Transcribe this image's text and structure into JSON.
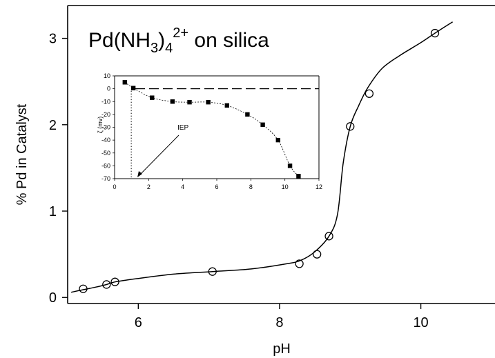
{
  "chart_data": [
    {
      "type": "scatter",
      "title_parts": {
        "base": "Pd(NH",
        "sub1": "3",
        "mid": ")",
        "sub2": "4",
        "sup": "2+",
        "rest": " on silica"
      },
      "xlabel": "pH",
      "ylabel": "% Pd in Catalyst",
      "xlim": [
        5.0,
        11.05
      ],
      "ylim": [
        -0.07,
        3.38
      ],
      "xticks": [
        "6",
        "8",
        "10"
      ],
      "yticks": [
        "0",
        "1",
        "2",
        "3"
      ],
      "grid": false,
      "series": [
        {
          "marker": "open-circle",
          "x": [
            5.22,
            5.55,
            5.67,
            7.05,
            8.28,
            8.53,
            8.7,
            9.0,
            9.27,
            10.2
          ],
          "y": [
            0.1,
            0.15,
            0.18,
            0.3,
            0.39,
            0.5,
            0.71,
            1.98,
            2.36,
            3.06
          ]
        }
      ],
      "fit_curve": {
        "x": [
          5.05,
          5.22,
          5.4,
          5.55,
          5.67,
          6.0,
          6.5,
          7.05,
          7.6,
          8.1,
          8.3,
          8.5,
          8.7,
          8.82,
          8.9,
          9.0,
          9.12,
          9.25,
          9.45,
          9.7,
          10.0,
          10.2,
          10.45
        ],
        "y": [
          0.06,
          0.09,
          0.12,
          0.15,
          0.18,
          0.22,
          0.27,
          0.3,
          0.33,
          0.39,
          0.43,
          0.53,
          0.71,
          0.96,
          1.55,
          1.98,
          2.22,
          2.43,
          2.65,
          2.8,
          2.95,
          3.06,
          3.19
        ]
      }
    },
    {
      "type": "scatter",
      "ylabel": "ζ (mv)",
      "annotation": "IEP",
      "xlim": [
        0,
        12
      ],
      "ylim": [
        -70,
        10
      ],
      "xticks": [
        "0",
        "2",
        "4",
        "6",
        "8",
        "10",
        "12"
      ],
      "yticks": [
        "10",
        "0",
        "-10",
        "-20",
        "-30",
        "-40",
        "-50",
        "-60",
        "-70"
      ],
      "grid": false,
      "series": [
        {
          "marker": "filled-square",
          "x": [
            0.6,
            1.1,
            2.2,
            3.4,
            4.4,
            5.5,
            6.6,
            7.8,
            8.7,
            9.6,
            10.3,
            10.8
          ],
          "y": [
            5.0,
            0.5,
            -7.0,
            -10.0,
            -10.5,
            -10.5,
            -13.0,
            -20.0,
            -28.0,
            -40.0,
            -60.0,
            -68.0
          ]
        }
      ],
      "zero_line": 0,
      "iep_x": 1.1
    }
  ]
}
